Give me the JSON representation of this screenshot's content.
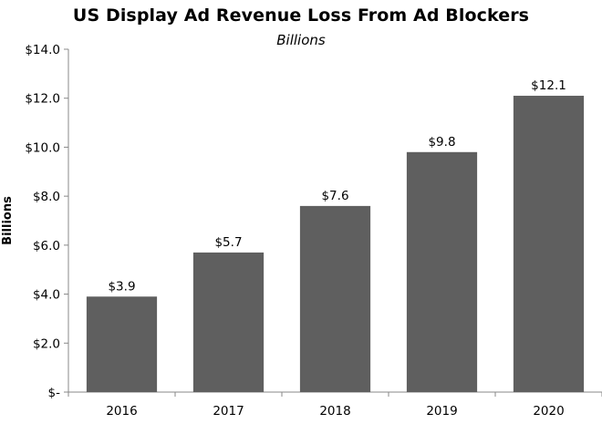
{
  "chart_data": {
    "type": "bar",
    "title": "US Display Ad Revenue Loss From Ad Blockers",
    "subtitle": "Billions",
    "xlabel": "",
    "ylabel": "Billions",
    "categories": [
      "2016",
      "2017",
      "2018",
      "2019",
      "2020"
    ],
    "values": [
      3.9,
      5.7,
      7.6,
      9.8,
      12.1
    ],
    "value_labels": [
      "$3.9",
      "$5.7",
      "$7.6",
      "$9.8",
      "$12.1"
    ],
    "ylim": [
      0,
      14
    ],
    "yticks": [
      0,
      2,
      4,
      6,
      8,
      10,
      12,
      14
    ],
    "ytick_labels": [
      "$-",
      "$2.0",
      "$4.0",
      "$6.0",
      "$8.0",
      "$10.0",
      "$12.0",
      "$14.0"
    ],
    "grid": false,
    "legend": "none",
    "bar_color": "#5f5f5f"
  }
}
